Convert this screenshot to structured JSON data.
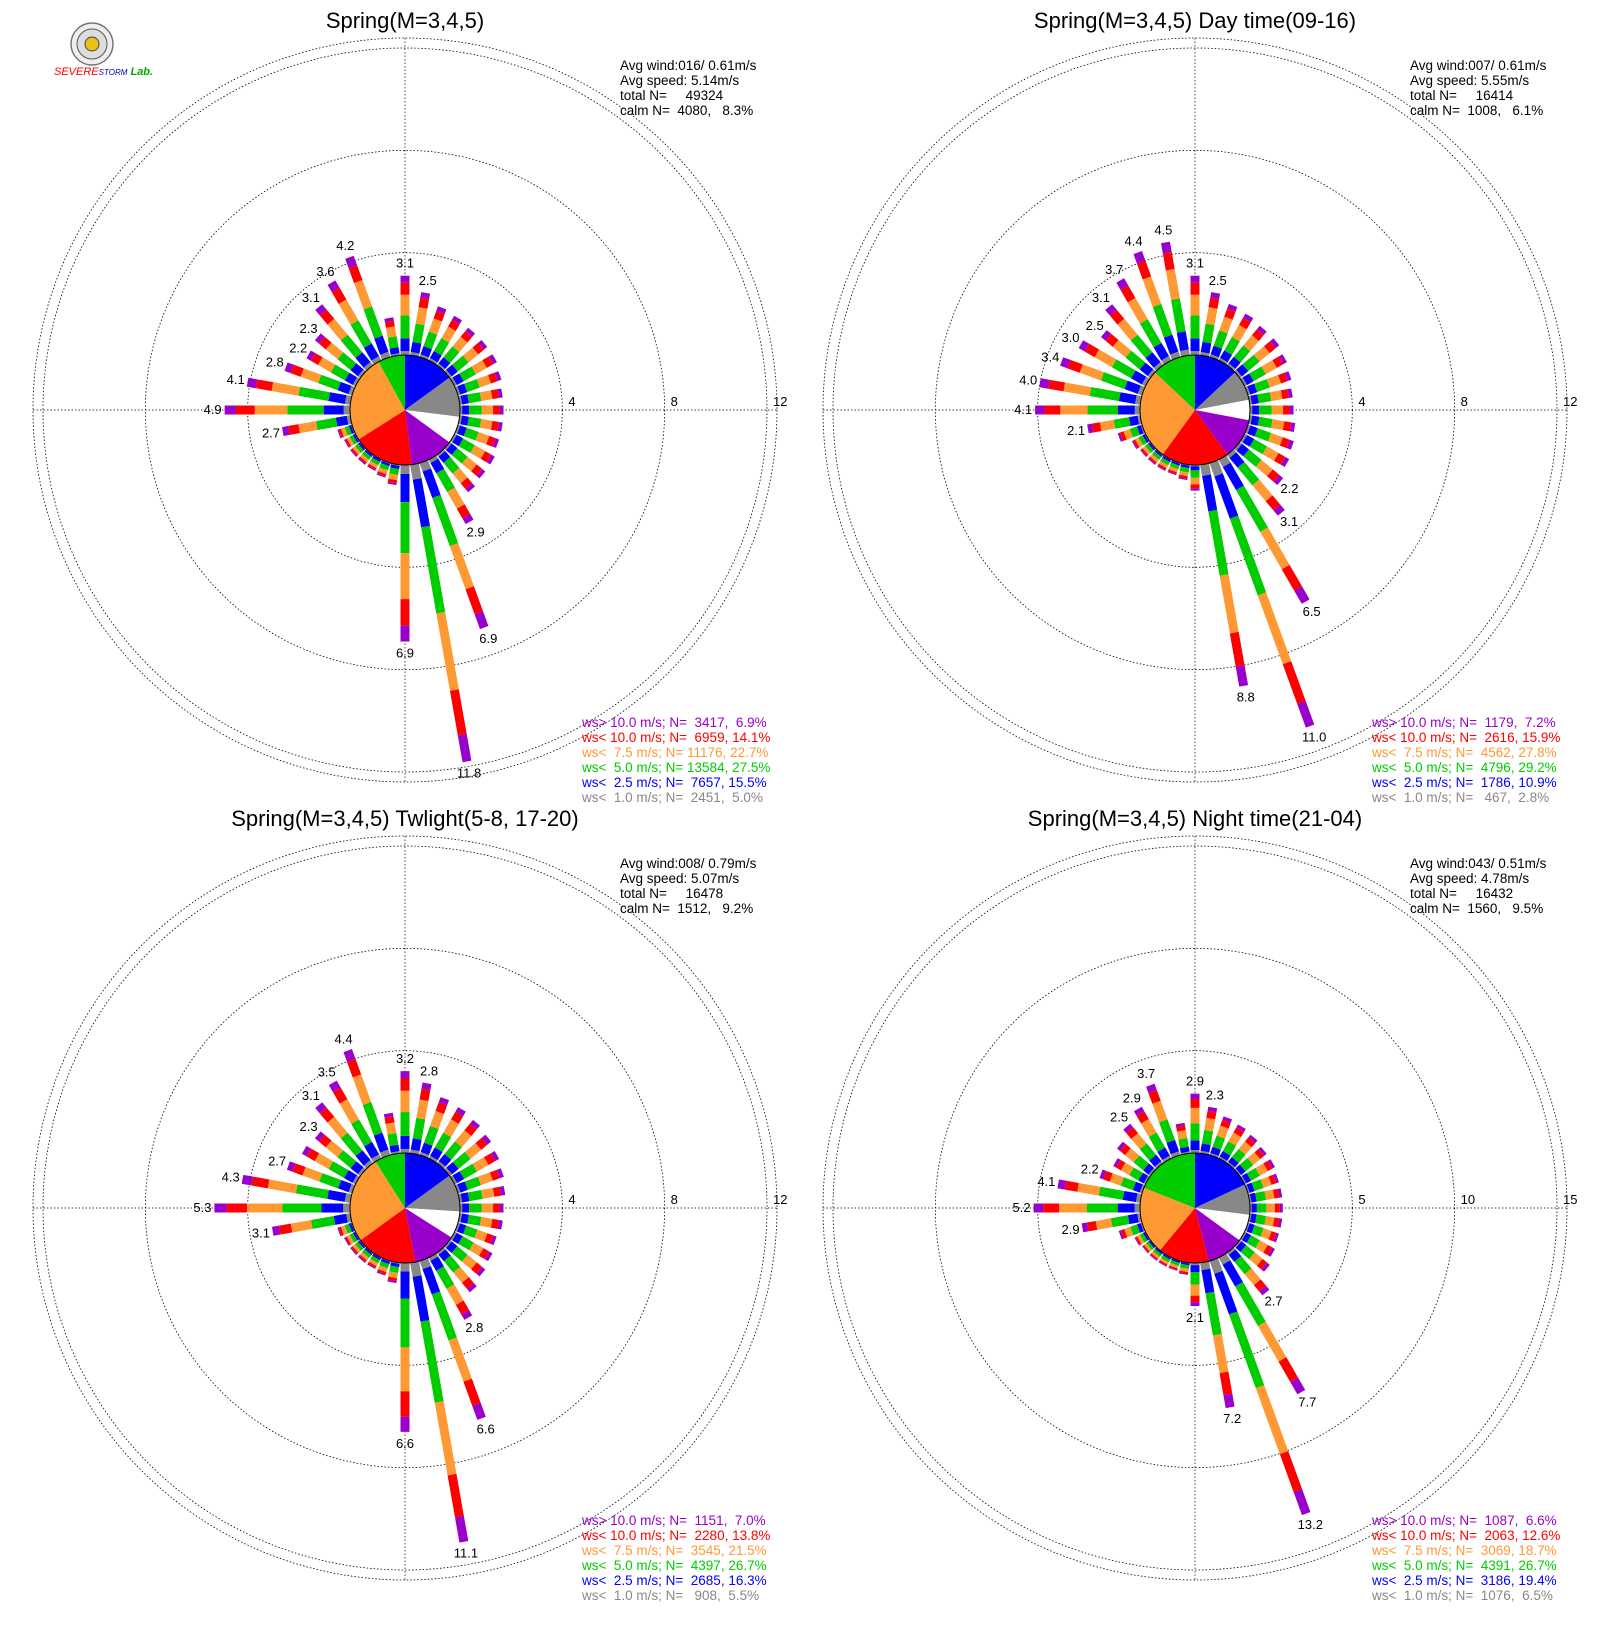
{
  "chart_data": [
    {
      "type": "wind-rose",
      "title": "Spring(M=3,4,5)",
      "ring_ticks": [
        4,
        8,
        12
      ],
      "stats": {
        "avg_wind": "Avg wind:016/ 0.61m/s",
        "avg_speed": "Avg speed: 5.14m/s",
        "total": "total N=     49324",
        "calm": "calm N=  4080,   8.3%"
      },
      "legend": [
        {
          "label": "ws> 10.0 m/s; N=  3417,  6.9%",
          "color": "#9900cc"
        },
        {
          "label": "ws< 10.0 m/s; N=  6959, 14.1%",
          "color": "#ff0000"
        },
        {
          "label": "ws<  7.5 m/s; N= 11176, 22.7%",
          "color": "#ff9933"
        },
        {
          "label": "ws<  5.0 m/s; N= 13584, 27.5%",
          "color": "#00cc00"
        },
        {
          "label": "ws<  2.5 m/s; N=  7657, 15.5%",
          "color": "#0000ff"
        },
        {
          "label": "ws<  1.0 m/s; N=  2451,  5.0%",
          "color": "#888888"
        }
      ],
      "calm_pie": [
        0.15,
        0.12,
        0.08,
        0.13,
        0.18,
        0.26,
        0.08
      ],
      "directions_deg": [
        0,
        10,
        20,
        30,
        40,
        50,
        60,
        70,
        80,
        90,
        100,
        110,
        120,
        130,
        140,
        150,
        160,
        170,
        180,
        190,
        200,
        210,
        220,
        230,
        240,
        250,
        260,
        270,
        280,
        290,
        300,
        310,
        320,
        330,
        340,
        350
      ],
      "totals": [
        3.1,
        2.5,
        2.1,
        2.0,
        1.9,
        1.9,
        1.9,
        1.8,
        1.7,
        1.7,
        1.7,
        1.7,
        1.8,
        1.8,
        1.9,
        2.9,
        6.9,
        11.8,
        6.9,
        0.8,
        0.6,
        0.5,
        0.5,
        0.5,
        0.5,
        0.6,
        2.7,
        4.9,
        4.1,
        2.8,
        2.2,
        2.3,
        3.1,
        3.6,
        4.2,
        1.5
      ],
      "labels": {
        "0": "3.1",
        "10": "2.5",
        "150": "2.9",
        "160": "6.9",
        "170": "11.8",
        "180": "6.9",
        "260": "2.7",
        "270": "4.9",
        "280": "4.1",
        "290": "2.8",
        "300": "2.2",
        "310": "2.3",
        "320": "3.1",
        "330": "3.6",
        "340": "4.2"
      }
    },
    {
      "type": "wind-rose",
      "title": "Spring(M=3,4,5) Day time(09-16)",
      "ring_ticks": [
        4,
        8,
        12
      ],
      "stats": {
        "avg_wind": "Avg wind:007/ 0.61m/s",
        "avg_speed": "Avg speed: 5.55m/s",
        "total": "total N=     16414",
        "calm": "calm N=  1008,   6.1%"
      },
      "legend": [
        {
          "label": "ws> 10.0 m/s; N=  1179,  7.2%",
          "color": "#9900cc"
        },
        {
          "label": "ws< 10.0 m/s; N=  2616, 15.9%",
          "color": "#ff0000"
        },
        {
          "label": "ws<  7.5 m/s; N=  4562, 27.8%",
          "color": "#ff9933"
        },
        {
          "label": "ws<  5.0 m/s; N=  4796, 29.2%",
          "color": "#00cc00"
        },
        {
          "label": "ws<  2.5 m/s; N=  1786, 10.9%",
          "color": "#0000ff"
        },
        {
          "label": "ws<  1.0 m/s; N=   467,  2.8%",
          "color": "#888888"
        }
      ],
      "calm_pie": [
        0.13,
        0.09,
        0.06,
        0.12,
        0.2,
        0.27,
        0.13
      ],
      "directions_deg": [
        0,
        10,
        20,
        30,
        40,
        50,
        60,
        70,
        80,
        90,
        100,
        110,
        120,
        130,
        140,
        150,
        160,
        170,
        180,
        190,
        200,
        210,
        220,
        230,
        240,
        250,
        260,
        270,
        280,
        290,
        300,
        310,
        320,
        330,
        340,
        350
      ],
      "totals": [
        3.1,
        2.5,
        2.2,
        2.1,
        2.0,
        2.0,
        1.9,
        1.8,
        1.7,
        1.7,
        1.8,
        1.9,
        2.0,
        2.2,
        3.1,
        6.5,
        11.0,
        8.8,
        1.0,
        0.6,
        0.5,
        0.5,
        0.5,
        0.5,
        0.6,
        1.0,
        2.1,
        4.1,
        4.0,
        3.4,
        3.0,
        2.5,
        3.1,
        3.7,
        4.4,
        4.5
      ],
      "labels": {
        "0": "3.1",
        "10": "2.5",
        "130": "2.2",
        "140": "3.1",
        "150": "6.5",
        "160": "11.0",
        "170": "8.8",
        "260": "2.1",
        "270": "4.1",
        "280": "4.0",
        "290": "3.4",
        "300": "3.0",
        "310": "2.5",
        "320": "3.1",
        "330": "3.7",
        "340": "4.4",
        "350": "4.5"
      }
    },
    {
      "type": "wind-rose",
      "title": "Spring(M=3,4,5) Twlight(5-8, 17-20)",
      "ring_ticks": [
        4,
        8,
        12
      ],
      "stats": {
        "avg_wind": "Avg wind:008/ 0.79m/s",
        "avg_speed": "Avg speed: 5.07m/s",
        "total": "total N=     16478",
        "calm": "calm N=  1512,   9.2%"
      },
      "legend": [
        {
          "label": "ws> 10.0 m/s; N=  1151,  7.0%",
          "color": "#9900cc"
        },
        {
          "label": "ws< 10.0 m/s; N=  2280, 13.8%",
          "color": "#ff0000"
        },
        {
          "label": "ws<  7.5 m/s; N=  3545, 21.5%",
          "color": "#ff9933"
        },
        {
          "label": "ws<  5.0 m/s; N=  4397, 26.7%",
          "color": "#00cc00"
        },
        {
          "label": "ws<  2.5 m/s; N=  2685, 16.3%",
          "color": "#0000ff"
        },
        {
          "label": "ws<  1.0 m/s; N=   908,  5.5%",
          "color": "#888888"
        }
      ],
      "calm_pie": [
        0.15,
        0.11,
        0.08,
        0.13,
        0.18,
        0.26,
        0.09
      ],
      "directions_deg": [
        0,
        10,
        20,
        30,
        40,
        50,
        60,
        70,
        80,
        90,
        100,
        110,
        120,
        130,
        140,
        150,
        160,
        170,
        180,
        190,
        200,
        210,
        220,
        230,
        240,
        250,
        260,
        270,
        280,
        290,
        300,
        310,
        320,
        330,
        340,
        350
      ],
      "totals": [
        3.2,
        2.8,
        2.4,
        2.3,
        2.2,
        2.1,
        2.0,
        1.9,
        1.8,
        1.7,
        1.7,
        1.6,
        1.7,
        1.8,
        2.0,
        2.8,
        6.6,
        11.1,
        6.6,
        0.8,
        0.6,
        0.5,
        0.5,
        0.5,
        0.5,
        0.6,
        3.1,
        5.3,
        4.3,
        2.7,
        2.4,
        2.3,
        3.1,
        3.5,
        4.4,
        1.6
      ],
      "labels": {
        "0": "3.2",
        "10": "2.8",
        "150": "2.8",
        "160": "6.6",
        "170": "11.1",
        "180": "6.6",
        "260": "3.1",
        "270": "5.3",
        "280": "4.3",
        "290": "2.7",
        "310": "2.3",
        "320": "3.1",
        "330": "3.5",
        "340": "4.4"
      }
    },
    {
      "type": "wind-rose",
      "title": "Spring(M=3,4,5) Night time(21-04)",
      "ring_ticks": [
        5,
        10,
        15
      ],
      "stats": {
        "avg_wind": "Avg wind:043/ 0.51m/s",
        "avg_speed": "Avg speed: 4.78m/s",
        "total": "total N=     16432",
        "calm": "calm N=  1560,   9.5%"
      },
      "legend": [
        {
          "label": "ws> 10.0 m/s; N=  1087,  6.6%",
          "color": "#9900cc"
        },
        {
          "label": "ws< 10.0 m/s; N=  2063, 12.6%",
          "color": "#ff0000"
        },
        {
          "label": "ws<  7.5 m/s; N=  3069, 18.7%",
          "color": "#ff9933"
        },
        {
          "label": "ws<  5.0 m/s; N=  4391, 26.7%",
          "color": "#00cc00"
        },
        {
          "label": "ws<  2.5 m/s; N=  3186, 19.4%",
          "color": "#0000ff"
        },
        {
          "label": "ws<  1.0 m/s; N=  1076,  6.5%",
          "color": "#888888"
        }
      ],
      "calm_pie": [
        0.18,
        0.09,
        0.08,
        0.11,
        0.15,
        0.2,
        0.19
      ],
      "directions_deg": [
        0,
        10,
        20,
        30,
        40,
        50,
        60,
        70,
        80,
        90,
        100,
        110,
        120,
        130,
        140,
        150,
        160,
        170,
        180,
        190,
        200,
        210,
        220,
        230,
        240,
        250,
        260,
        270,
        280,
        290,
        300,
        310,
        320,
        330,
        340,
        350
      ],
      "totals": [
        2.9,
        2.3,
        2.0,
        1.9,
        1.8,
        1.7,
        1.7,
        1.6,
        1.6,
        1.6,
        1.6,
        1.6,
        1.7,
        1.9,
        2.7,
        7.7,
        13.2,
        7.2,
        2.1,
        0.6,
        0.5,
        0.5,
        0.5,
        0.5,
        0.6,
        1.2,
        2.9,
        5.2,
        4.1,
        2.2,
        1.8,
        2.1,
        2.5,
        2.9,
        3.7,
        1.5
      ],
      "labels": {
        "0": "2.9",
        "10": "2.3",
        "140": "2.7",
        "150": "7.7",
        "160": "13.2",
        "170": "7.2",
        "180": "2.1",
        "260": "2.9",
        "270": "5.2",
        "280": "4.1",
        "290": "2.2",
        "320": "2.5",
        "330": "2.9",
        "340": "3.7"
      }
    }
  ],
  "logo": {
    "text_severe": "SEVERE",
    "text_storm": "STORM",
    "text_lab": "Lab."
  },
  "colors": {
    "calm_white": "#ffffff"
  }
}
